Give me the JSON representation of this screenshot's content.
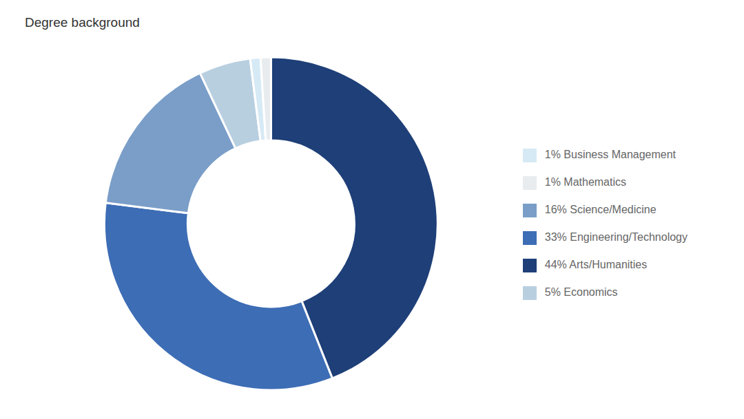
{
  "chart_data": {
    "type": "pie",
    "title": "Degree background",
    "categories": [
      "44%  Arts/Humanities",
      "33%  Engineering/Technology",
      "16%  Science/Medicine",
      "5%  Economics",
      "1%  Business Management",
      "1%  Mathematics"
    ],
    "values": [
      44,
      33,
      16,
      5,
      1,
      1
    ],
    "colors": [
      "#1e3f78",
      "#3d6db5",
      "#7a9ec8",
      "#b8cfe0",
      "#d6eaf5",
      "#e8ecef"
    ],
    "legend": "right"
  }
}
